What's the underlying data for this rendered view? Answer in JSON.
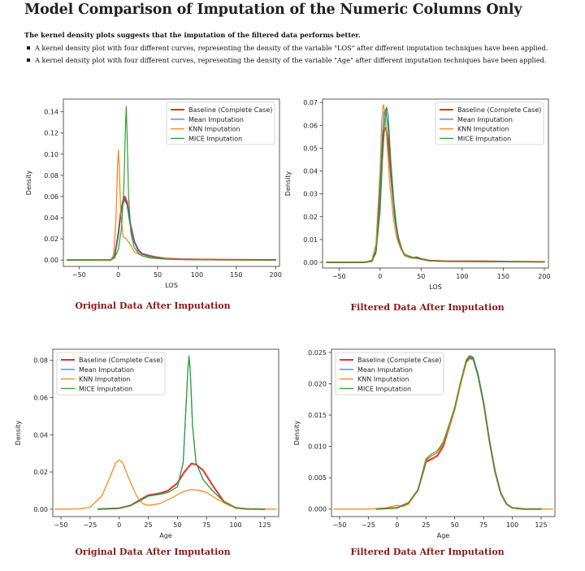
{
  "page": {
    "title": "Model Comparison of Imputation of the Numeric Columns Only",
    "lead": "The kernel density plots suggests that the imputation of the filtered data performs better.",
    "bullets": [
      "A kernel density plot with four different curves, representing the density of the variable \"LOS\" after different imputation techniques have been applied.",
      "A kernel density plot with four different curves, representing the density of the variable \"Age\" after different imputation techniques have been applied."
    ]
  },
  "colors": {
    "baseline": "#e8302a",
    "mean": "#1f77b4",
    "knn": "#ff7f0e",
    "mice": "#2ca02c",
    "caption": "#8b1a1a"
  },
  "chart_data": [
    {
      "type": "line",
      "caption": "Original Data After Imputation",
      "xlabel": "LOS",
      "ylabel": "Density",
      "xlim": [
        -70,
        205
      ],
      "ylim": [
        -0.006,
        0.152
      ],
      "xticks": [
        -50,
        0,
        50,
        100,
        150,
        200
      ],
      "yticks": [
        0.0,
        0.02,
        0.04,
        0.06,
        0.08,
        0.1,
        0.12,
        0.14
      ],
      "yticklabels": [
        "0.00",
        "0.02",
        "0.04",
        "0.06",
        "0.08",
        "0.10",
        "0.12",
        "0.14"
      ],
      "legend": "top-right",
      "series": [
        {
          "name": "Baseline (Complete Case)",
          "color_key": "baseline",
          "width": 2,
          "x": [
            -65,
            -10,
            -5,
            0,
            3,
            6,
            8,
            11,
            15,
            20,
            25,
            30,
            40,
            50,
            60,
            80,
            120,
            160,
            200
          ],
          "y": [
            0,
            0,
            0.003,
            0.025,
            0.045,
            0.056,
            0.06,
            0.055,
            0.035,
            0.018,
            0.01,
            0.006,
            0.004,
            0.0025,
            0.0015,
            0.0008,
            0.0004,
            0.0002,
            0.0001
          ]
        },
        {
          "name": "Mean Imputation",
          "color_key": "mean",
          "width": 1.2,
          "x": [
            -65,
            -10,
            -5,
            0,
            3,
            6,
            8,
            11,
            15,
            20,
            25,
            30,
            40,
            50,
            60,
            80,
            120,
            160,
            200
          ],
          "y": [
            0,
            0,
            0.003,
            0.023,
            0.042,
            0.053,
            0.057,
            0.052,
            0.033,
            0.017,
            0.009,
            0.0055,
            0.0035,
            0.0022,
            0.0013,
            0.0007,
            0.0003,
            0.0002,
            0.0001
          ]
        },
        {
          "name": "KNN Imputation",
          "color_key": "knn",
          "width": 1.2,
          "x": [
            -65,
            -10,
            -6,
            -3,
            -1,
            0,
            1,
            3,
            6,
            10,
            15,
            20,
            30,
            50,
            80,
            120,
            200
          ],
          "y": [
            0,
            0,
            0.005,
            0.04,
            0.09,
            0.104,
            0.09,
            0.045,
            0.022,
            0.02,
            0.015,
            0.008,
            0.004,
            0.0015,
            0.0005,
            0.0002,
            0.0001
          ]
        },
        {
          "name": "MICE Imputation",
          "color_key": "mice",
          "width": 1.2,
          "x": [
            -65,
            -10,
            -5,
            0,
            4,
            7,
            9,
            10,
            11,
            13,
            16,
            20,
            25,
            30,
            40,
            60,
            100,
            200
          ],
          "y": [
            0,
            0,
            0.002,
            0.01,
            0.03,
            0.07,
            0.125,
            0.145,
            0.12,
            0.06,
            0.025,
            0.012,
            0.007,
            0.004,
            0.002,
            0.0008,
            0.0003,
            0.0001
          ]
        }
      ]
    },
    {
      "type": "line",
      "caption": "Filtered Data After Imputation",
      "xlabel": "LOS",
      "ylabel": "Density",
      "xlim": [
        -70,
        205
      ],
      "ylim": [
        -0.0025,
        0.0715
      ],
      "xticks": [
        -50,
        0,
        50,
        100,
        150,
        200
      ],
      "yticks": [
        0.0,
        0.01,
        0.02,
        0.03,
        0.04,
        0.05,
        0.06,
        0.07
      ],
      "yticklabels": [
        "0.00",
        "0.01",
        "0.02",
        "0.03",
        "0.04",
        "0.05",
        "0.06",
        "0.07"
      ],
      "legend": "top-right",
      "series": [
        {
          "name": "Baseline (Complete Case)",
          "color_key": "baseline",
          "width": 2,
          "x": [
            -65,
            -20,
            -10,
            -5,
            0,
            3,
            5,
            7,
            10,
            14,
            18,
            22,
            26,
            30,
            35,
            40,
            45,
            50,
            60,
            80,
            120,
            160,
            200
          ],
          "y": [
            0,
            0,
            0.0005,
            0.005,
            0.03,
            0.05,
            0.058,
            0.059,
            0.052,
            0.035,
            0.02,
            0.011,
            0.006,
            0.003,
            0.0025,
            0.002,
            0.0022,
            0.0015,
            0.0008,
            0.0005,
            0.0005,
            0.0003,
            0.0002
          ]
        },
        {
          "name": "Mean Imputation",
          "color_key": "mean",
          "width": 1.2,
          "x": [
            -65,
            -20,
            -10,
            -5,
            0,
            3,
            5,
            7,
            10,
            14,
            18,
            22,
            26,
            30,
            35,
            40,
            45,
            50,
            60,
            80,
            120,
            160,
            200
          ],
          "y": [
            0,
            0,
            0.0005,
            0.005,
            0.032,
            0.056,
            0.066,
            0.067,
            0.058,
            0.036,
            0.019,
            0.01,
            0.0055,
            0.003,
            0.0022,
            0.0018,
            0.002,
            0.0013,
            0.0007,
            0.0004,
            0.0004,
            0.0003,
            0.0002
          ]
        },
        {
          "name": "KNN Imputation",
          "color_key": "knn",
          "width": 1.2,
          "x": [
            -65,
            -20,
            -10,
            -5,
            0,
            2,
            4,
            6,
            8,
            12,
            16,
            20,
            25,
            30,
            40,
            50,
            60,
            80,
            120,
            200
          ],
          "y": [
            0,
            0,
            0.001,
            0.008,
            0.04,
            0.062,
            0.069,
            0.066,
            0.055,
            0.034,
            0.02,
            0.011,
            0.006,
            0.003,
            0.002,
            0.0013,
            0.0006,
            0.0004,
            0.0003,
            0.0002
          ]
        },
        {
          "name": "MICE Imputation",
          "color_key": "mice",
          "width": 1.2,
          "x": [
            -65,
            -20,
            -10,
            -5,
            0,
            3,
            6,
            8,
            10,
            13,
            17,
            21,
            25,
            30,
            40,
            50,
            60,
            80,
            120,
            200
          ],
          "y": [
            0,
            0,
            0.0005,
            0.004,
            0.022,
            0.045,
            0.063,
            0.068,
            0.064,
            0.045,
            0.026,
            0.013,
            0.007,
            0.0035,
            0.0022,
            0.0013,
            0.0007,
            0.0004,
            0.0003,
            0.0002
          ]
        }
      ]
    },
    {
      "type": "line",
      "caption": "Original Data After Imputation",
      "xlabel": "Age",
      "ylabel": "Density",
      "xlim": [
        -57,
        137
      ],
      "ylim": [
        -0.004,
        0.086
      ],
      "xticks": [
        -50,
        -25,
        0,
        25,
        50,
        75,
        100,
        125
      ],
      "yticks": [
        0.0,
        0.02,
        0.04,
        0.06,
        0.08
      ],
      "yticklabels": [
        "0.00",
        "0.02",
        "0.04",
        "0.06",
        "0.08"
      ],
      "legend": "top-left",
      "series": [
        {
          "name": "Baseline (Complete Case)",
          "color_key": "baseline",
          "width": 2,
          "x": [
            -18,
            0,
            10,
            18,
            25,
            30,
            35,
            42,
            50,
            56,
            62,
            66,
            72,
            80,
            90,
            100,
            110,
            125
          ],
          "y": [
            0,
            0.0005,
            0.002,
            0.005,
            0.0075,
            0.008,
            0.0085,
            0.01,
            0.014,
            0.02,
            0.0245,
            0.024,
            0.021,
            0.013,
            0.004,
            0.0007,
            0.0001,
            0
          ]
        },
        {
          "name": "Mean Imputation",
          "color_key": "mean",
          "width": 1.2,
          "x": [
            -18,
            0,
            10,
            18,
            25,
            30,
            35,
            42,
            50,
            55,
            57,
            59,
            60,
            61,
            63,
            66,
            72,
            80,
            90,
            100,
            110,
            125
          ],
          "y": [
            0,
            0.0005,
            0.002,
            0.0045,
            0.007,
            0.0075,
            0.008,
            0.009,
            0.012,
            0.025,
            0.05,
            0.075,
            0.082,
            0.075,
            0.045,
            0.025,
            0.016,
            0.01,
            0.004,
            0.0007,
            0.0001,
            0
          ]
        },
        {
          "name": "KNN Imputation",
          "color_key": "knn",
          "width": 1.2,
          "x": [
            -55,
            -35,
            -25,
            -15,
            -8,
            -3,
            0,
            3,
            8,
            15,
            20,
            25,
            35,
            45,
            55,
            62,
            68,
            75,
            85,
            95,
            105,
            115,
            135
          ],
          "y": [
            0,
            0.0001,
            0.001,
            0.007,
            0.017,
            0.025,
            0.0265,
            0.025,
            0.017,
            0.007,
            0.003,
            0.002,
            0.003,
            0.006,
            0.0095,
            0.0105,
            0.0102,
            0.009,
            0.005,
            0.0018,
            0.0004,
            0.0001,
            0
          ]
        },
        {
          "name": "MICE Imputation",
          "color_key": "mice",
          "width": 1.2,
          "x": [
            -18,
            0,
            10,
            18,
            25,
            30,
            35,
            42,
            50,
            55,
            57,
            59,
            60,
            61,
            63,
            66,
            72,
            80,
            90,
            100,
            110,
            125
          ],
          "y": [
            0,
            0.0005,
            0.002,
            0.0045,
            0.007,
            0.0075,
            0.008,
            0.009,
            0.012,
            0.025,
            0.05,
            0.075,
            0.0825,
            0.075,
            0.045,
            0.025,
            0.016,
            0.01,
            0.004,
            0.0007,
            0.0001,
            0
          ]
        }
      ]
    },
    {
      "type": "line",
      "caption": "Filtered Data After Imputation",
      "xlabel": "Age",
      "ylabel": "Density",
      "xlim": [
        -57,
        137
      ],
      "ylim": [
        -0.0012,
        0.0255
      ],
      "xticks": [
        -50,
        -25,
        0,
        25,
        50,
        75,
        100,
        125
      ],
      "yticks": [
        0.0,
        0.005,
        0.01,
        0.015,
        0.02,
        0.025
      ],
      "yticklabels": [
        "0.000",
        "0.005",
        "0.010",
        "0.015",
        "0.020",
        "0.025"
      ],
      "legend": "top-left",
      "series": [
        {
          "name": "Baseline (Complete Case)",
          "color_key": "baseline",
          "width": 2,
          "x": [
            -18,
            0,
            10,
            18,
            25,
            30,
            35,
            40,
            45,
            50,
            55,
            60,
            63,
            66,
            70,
            75,
            80,
            85,
            90,
            95,
            100,
            110,
            125
          ],
          "y": [
            0,
            0.0002,
            0.001,
            0.003,
            0.0075,
            0.008,
            0.0085,
            0.01,
            0.013,
            0.016,
            0.02,
            0.0235,
            0.0242,
            0.024,
            0.0215,
            0.017,
            0.011,
            0.006,
            0.0025,
            0.0008,
            0.0002,
            0,
            0
          ]
        },
        {
          "name": "Mean Imputation",
          "color_key": "mean",
          "width": 1.2,
          "x": [
            -18,
            0,
            10,
            18,
            25,
            30,
            35,
            40,
            45,
            50,
            55,
            60,
            63,
            66,
            70,
            75,
            80,
            85,
            90,
            95,
            100,
            110,
            125
          ],
          "y": [
            0,
            0.0002,
            0.001,
            0.003,
            0.0078,
            0.0085,
            0.009,
            0.0105,
            0.0132,
            0.0162,
            0.0202,
            0.0238,
            0.0245,
            0.0242,
            0.0217,
            0.0172,
            0.0112,
            0.0061,
            0.0026,
            0.0008,
            0.0002,
            0,
            0
          ]
        },
        {
          "name": "KNN Imputation",
          "color_key": "knn",
          "width": 1.2,
          "x": [
            -55,
            -25,
            -10,
            -5,
            0,
            5,
            10,
            18,
            25,
            30,
            35,
            40,
            45,
            50,
            55,
            60,
            63,
            66,
            70,
            75,
            80,
            85,
            90,
            95,
            100,
            110,
            135
          ],
          "y": [
            0,
            0,
            0.0002,
            0.0004,
            0.0006,
            0.0004,
            0.0008,
            0.003,
            0.0077,
            0.0085,
            0.009,
            0.0104,
            0.0131,
            0.016,
            0.0198,
            0.0233,
            0.024,
            0.0238,
            0.0213,
            0.0169,
            0.011,
            0.006,
            0.0025,
            0.0008,
            0.0002,
            0,
            0
          ]
        },
        {
          "name": "MICE Imputation",
          "color_key": "mice",
          "width": 1.2,
          "x": [
            -18,
            0,
            10,
            18,
            25,
            30,
            35,
            40,
            45,
            50,
            55,
            60,
            63,
            66,
            70,
            75,
            80,
            85,
            90,
            95,
            100,
            110,
            125
          ],
          "y": [
            0,
            0.0002,
            0.001,
            0.003,
            0.008,
            0.0088,
            0.0093,
            0.0107,
            0.0134,
            0.0163,
            0.0203,
            0.0237,
            0.0243,
            0.024,
            0.0214,
            0.0169,
            0.011,
            0.006,
            0.0025,
            0.0008,
            0.0002,
            0,
            0
          ]
        }
      ]
    }
  ]
}
